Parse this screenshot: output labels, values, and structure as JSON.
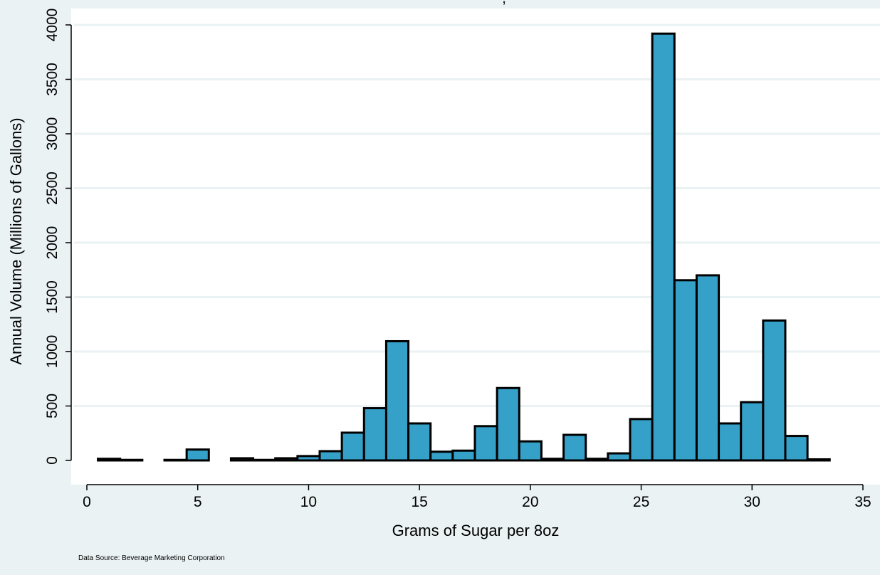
{
  "title_fragment": ",",
  "source_note": "Data Source: Beverage Marketing Corporation",
  "colors": {
    "background": "#eaf2f3",
    "plot_background": "#ffffff",
    "gridline": "#eaf2f3",
    "bar_fill": "#35a0c8",
    "bar_stroke": "#000000"
  },
  "chart_data": {
    "type": "bar",
    "title": "",
    "xlabel": "Grams of Sugar per 8oz",
    "ylabel": "Annual Volume (Millions of Gallons)",
    "xlim": [
      0,
      35
    ],
    "ylim": [
      0,
      4000
    ],
    "xticks": [
      0,
      5,
      10,
      15,
      20,
      25,
      30,
      35
    ],
    "yticks": [
      0,
      500,
      1000,
      1500,
      2000,
      2500,
      3000,
      3500,
      4000
    ],
    "grid": true,
    "bin_width": 1,
    "x": [
      1,
      2,
      4,
      5,
      7,
      8,
      9,
      10,
      11,
      12,
      13,
      14,
      15,
      16,
      17,
      18,
      19,
      20,
      21,
      22,
      23,
      24,
      25,
      26,
      27,
      28,
      29,
      30,
      31,
      32,
      33
    ],
    "values": [
      15,
      5,
      5,
      100,
      20,
      5,
      20,
      40,
      85,
      255,
      480,
      1095,
      340,
      80,
      90,
      315,
      665,
      175,
      15,
      235,
      15,
      65,
      380,
      3920,
      1655,
      1700,
      340,
      535,
      1285,
      225,
      10
    ]
  }
}
